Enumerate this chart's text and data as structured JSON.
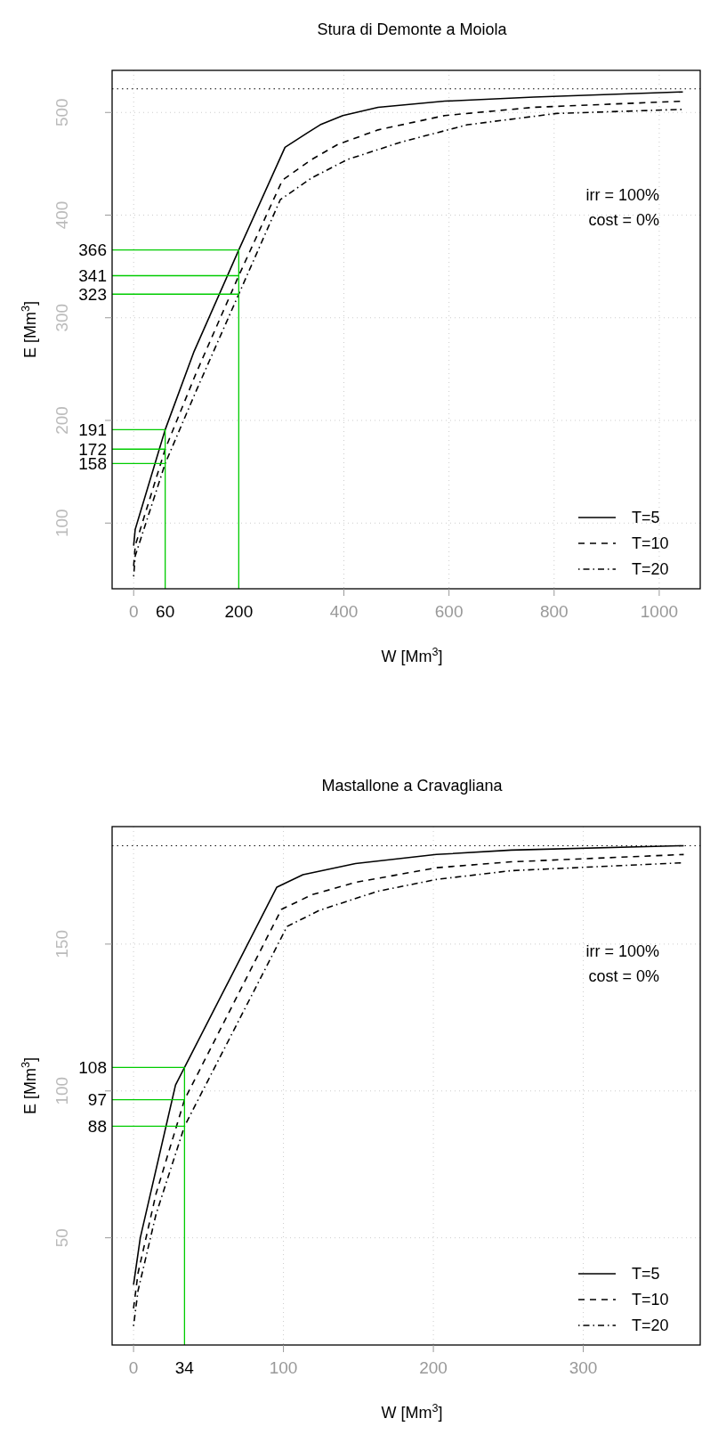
{
  "chart_data": [
    {
      "type": "line",
      "title": "Stura di Demonte a Moiola",
      "xlabel": "W  [Mm$^{3}$]",
      "ylabel": "E  [Mm$^{3}$]",
      "xlim": [
        -41,
        1078
      ],
      "ylim": [
        36,
        541
      ],
      "xticks": [
        0,
        60,
        200,
        400,
        600,
        800,
        1000
      ],
      "yticks": [
        100,
        200,
        300,
        400,
        500
      ],
      "grid": true,
      "legend": "bottom right",
      "annotations": [
        "irr = 100%",
        "cost = 0%"
      ],
      "ref_lines": [
        {
          "axis": "y",
          "value": 523,
          "color": "#000000",
          "line_style": "dotted"
        }
      ],
      "series": [
        {
          "name": "T=5",
          "color": "#000000",
          "line_style": "solid",
          "x": [
            0,
            3,
            60,
            114,
            200,
            288,
            330,
            355,
            398,
            465,
            592,
            761,
            1045
          ],
          "values": [
            78,
            94,
            191,
            266,
            366,
            466,
            480,
            488,
            497,
            505,
            511,
            515,
            520
          ]
        },
        {
          "name": "T=10",
          "color": "#000000",
          "line_style": "dashed",
          "x": [
            0,
            3,
            60,
            118,
            200,
            283,
            338,
            389,
            465,
            592,
            761,
            1045
          ],
          "values": [
            58,
            78,
            172,
            245,
            341,
            434,
            454,
            469,
            483,
            497,
            505,
            511
          ]
        },
        {
          "name": "T=20",
          "color": "#000000",
          "line_style": "dashdot",
          "x": [
            0,
            3,
            60,
            120,
            200,
            279,
            338,
            406,
            508,
            635,
            804,
            1045
          ],
          "values": [
            48,
            68,
            158,
            230,
            323,
            415,
            436,
            454,
            471,
            488,
            499,
            503
          ]
        },
        {
          "color": "#00cc00",
          "line_style": "solid",
          "x": [
            -41,
            200,
            200
          ],
          "values": [
            366,
            366,
            36
          ],
          "value_labels": [
            "366",
            null,
            null
          ]
        },
        {
          "color": "#00cc00",
          "line_style": "solid",
          "x": [
            -41,
            200
          ],
          "values": [
            341,
            341
          ],
          "value_labels": [
            "341",
            null
          ]
        },
        {
          "color": "#00cc00",
          "line_style": "solid",
          "x": [
            -41,
            200
          ],
          "values": [
            323,
            323
          ],
          "value_labels": [
            "323",
            null
          ]
        },
        {
          "color": "#00cc00",
          "line_style": "solid",
          "x": [
            -41,
            60,
            60
          ],
          "values": [
            191,
            191,
            36
          ],
          "value_labels": [
            "191",
            null,
            null
          ]
        },
        {
          "color": "#00cc00",
          "line_style": "solid",
          "x": [
            -41,
            60
          ],
          "values": [
            172,
            172
          ],
          "value_labels": [
            "172",
            null
          ]
        },
        {
          "color": "#00cc00",
          "line_style": "solid",
          "x": [
            -41,
            60
          ],
          "values": [
            158,
            158
          ],
          "value_labels": [
            "158",
            null
          ]
        }
      ]
    },
    {
      "type": "line",
      "title": "Mastallone a Cravagliana",
      "xlabel": "W  [Mm$^{3}$]",
      "ylabel": "E  [Mm$^{3}$]",
      "xlim": [
        -14.3,
        378
      ],
      "ylim": [
        13.5,
        190
      ],
      "xticks": [
        0,
        34,
        100,
        200,
        300
      ],
      "yticks": [
        50,
        100,
        150
      ],
      "grid": true,
      "legend": "bottom right",
      "annotations": [
        "irr = 100%",
        "cost = 0%"
      ],
      "ref_lines": [
        {
          "axis": "y",
          "value": 183.5,
          "color": "#000000",
          "line_style": "dotted"
        }
      ],
      "series": [
        {
          "name": "T=5",
          "color": "#000000",
          "line_style": "solid",
          "x": [
            0,
            4.5,
            28,
            34,
            95.6,
            113,
            148,
            202,
            252,
            367
          ],
          "values": [
            34,
            50,
            102,
            108,
            169.4,
            173.6,
            177.4,
            180.5,
            182,
            183.5
          ]
        },
        {
          "name": "T=10",
          "color": "#000000",
          "line_style": "dashed",
          "x": [
            0,
            3,
            15,
            34,
            98.6,
            119,
            148,
            202,
            252,
            367
          ],
          "values": [
            26,
            38,
            65,
            97,
            161.8,
            166.8,
            171,
            176,
            178,
            180.5
          ]
        },
        {
          "name": "T=20",
          "color": "#000000",
          "line_style": "dashdot",
          "x": [
            0,
            3,
            15,
            34,
            102.4,
            124,
            163,
            202,
            252,
            367
          ],
          "values": [
            20,
            32,
            58,
            88,
            156,
            161.5,
            168,
            172,
            175,
            177.7
          ]
        },
        {
          "color": "#00cc00",
          "line_style": "solid",
          "x": [
            -14.3,
            34,
            34
          ],
          "values": [
            108,
            108,
            13.5
          ],
          "value_labels": [
            "108",
            null,
            null
          ]
        },
        {
          "color": "#00cc00",
          "line_style": "solid",
          "x": [
            -14.3,
            34
          ],
          "values": [
            97,
            97
          ],
          "value_labels": [
            "97",
            null
          ]
        },
        {
          "color": "#00cc00",
          "line_style": "solid",
          "x": [
            -14.3,
            34
          ],
          "values": [
            88,
            88
          ],
          "value_labels": [
            "88",
            null
          ]
        }
      ]
    }
  ]
}
